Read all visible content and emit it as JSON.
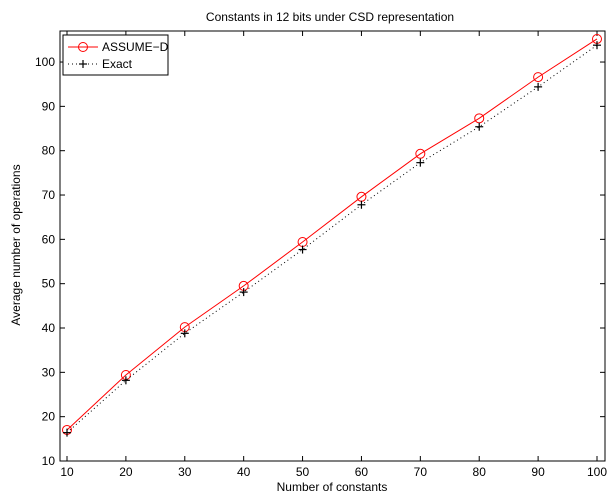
{
  "chart_data": {
    "type": "line",
    "title": "Constants in 12 bits under CSD representation",
    "xlabel": "Number of constants",
    "ylabel": "Average number of operations",
    "xlim": [
      10,
      100
    ],
    "ylim": [
      10,
      107
    ],
    "xticks": [
      10,
      20,
      30,
      40,
      50,
      60,
      70,
      80,
      90,
      100
    ],
    "yticks": [
      10,
      20,
      30,
      40,
      50,
      60,
      70,
      80,
      90,
      100
    ],
    "grid": false,
    "legend_position": "top-left",
    "x": [
      10,
      20,
      30,
      40,
      50,
      60,
      70,
      80,
      90,
      100
    ],
    "series": [
      {
        "name": "ASSUME−D",
        "color": "#ff0000",
        "line_style": "solid",
        "marker": "circle",
        "values": [
          17.0,
          29.4,
          40.2,
          49.5,
          59.4,
          69.6,
          79.3,
          87.3,
          96.6,
          105.2
        ]
      },
      {
        "name": "Exact",
        "color": "#000000",
        "line_style": "dotted",
        "marker": "plus",
        "values": [
          16.4,
          28.2,
          38.8,
          48.1,
          57.7,
          67.8,
          77.3,
          85.4,
          94.4,
          103.8
        ]
      }
    ]
  }
}
